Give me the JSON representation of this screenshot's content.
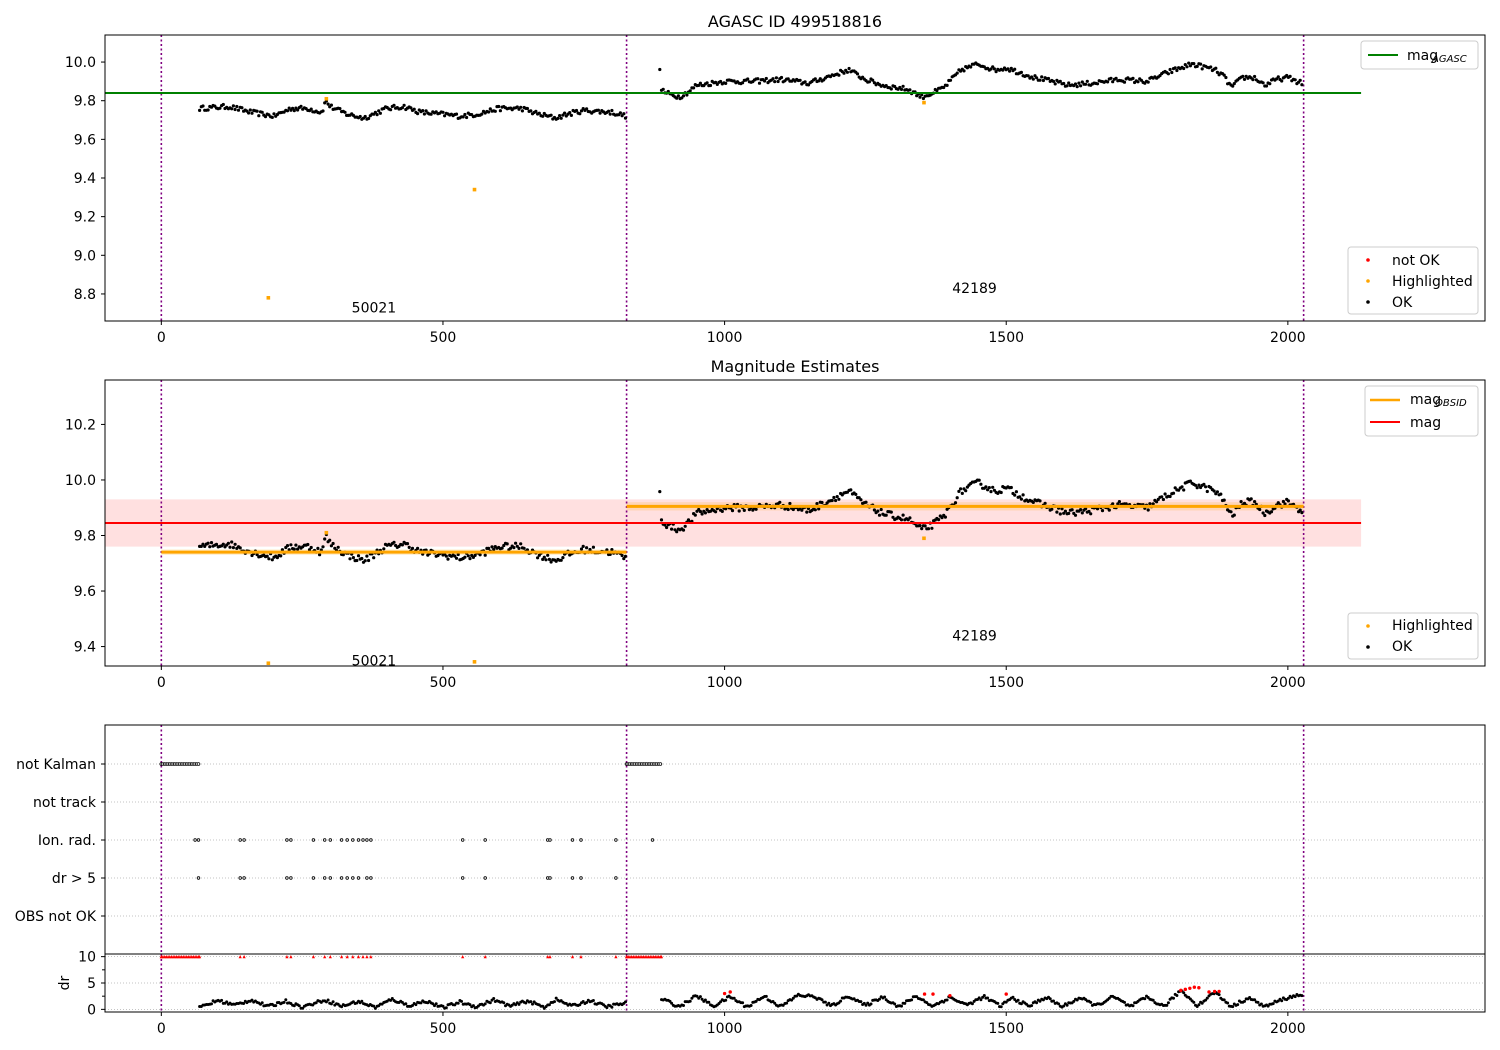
{
  "chart_data": [
    {
      "type": "scatter",
      "title": "AGASC ID 499518816",
      "xlim": [
        -100,
        2350
      ],
      "ylim": [
        8.66,
        10.14
      ],
      "xticks": [
        0,
        500,
        1000,
        1500,
        2000
      ],
      "yticks": [
        8.8,
        9.0,
        9.2,
        9.4,
        9.6,
        9.8,
        10.0
      ],
      "ytick_labels": [
        "8.8",
        "9.0",
        "9.2",
        "9.4",
        "9.6",
        "9.8",
        "10.0"
      ],
      "obs_boundaries": [
        0,
        826,
        2028
      ],
      "obs_labels": [
        {
          "text": "50021",
          "x": 413,
          "y": 8.73
        },
        {
          "text": "42189",
          "x": 1426,
          "y": 8.83
        }
      ],
      "mag_agasc": {
        "value": 9.84,
        "x": [
          -100,
          2130
        ],
        "color": "#008000"
      },
      "ok_segments": [
        {
          "x0": 68,
          "x1": 826,
          "step": 3,
          "base": 9.74,
          "points": [
            [
              68,
              9.76
            ],
            [
              120,
              9.77
            ],
            [
              160,
              9.74
            ],
            [
              180,
              9.73
            ],
            [
              200,
              9.72
            ],
            [
              230,
              9.76
            ],
            [
              260,
              9.76
            ],
            [
              285,
              9.74
            ],
            [
              292,
              9.8
            ],
            [
              300,
              9.77
            ],
            [
              330,
              9.73
            ],
            [
              360,
              9.71
            ],
            [
              400,
              9.76
            ],
            [
              430,
              9.77
            ],
            [
              460,
              9.74
            ],
            [
              500,
              9.73
            ],
            [
              530,
              9.72
            ],
            [
              560,
              9.73
            ],
            [
              600,
              9.76
            ],
            [
              640,
              9.76
            ],
            [
              670,
              9.73
            ],
            [
              700,
              9.71
            ],
            [
              720,
              9.73
            ],
            [
              750,
              9.75
            ],
            [
              800,
              9.74
            ],
            [
              826,
              9.72
            ]
          ]
        },
        {
          "x0": 885,
          "x1": 2025,
          "step": 3,
          "base": 9.88,
          "points": [
            [
              885,
              9.95
            ],
            [
              888,
              9.86
            ],
            [
              895,
              9.84
            ],
            [
              920,
              9.82
            ],
            [
              938,
              9.85
            ],
            [
              950,
              9.88
            ],
            [
              1000,
              9.9
            ],
            [
              1050,
              9.9
            ],
            [
              1100,
              9.91
            ],
            [
              1150,
              9.89
            ],
            [
              1180,
              9.92
            ],
            [
              1200,
              9.94
            ],
            [
              1220,
              9.96
            ],
            [
              1250,
              9.91
            ],
            [
              1280,
              9.88
            ],
            [
              1300,
              9.87
            ],
            [
              1325,
              9.86
            ],
            [
              1350,
              9.82
            ],
            [
              1370,
              9.84
            ],
            [
              1390,
              9.87
            ],
            [
              1420,
              9.96
            ],
            [
              1450,
              9.99
            ],
            [
              1480,
              9.96
            ],
            [
              1500,
              9.97
            ],
            [
              1520,
              9.95
            ],
            [
              1550,
              9.92
            ],
            [
              1580,
              9.9
            ],
            [
              1610,
              9.88
            ],
            [
              1650,
              9.89
            ],
            [
              1700,
              9.91
            ],
            [
              1750,
              9.9
            ],
            [
              1790,
              9.95
            ],
            [
              1830,
              9.99
            ],
            [
              1870,
              9.96
            ],
            [
              1885,
              9.93
            ],
            [
              1900,
              9.87
            ],
            [
              1920,
              9.92
            ],
            [
              1940,
              9.92
            ],
            [
              1960,
              9.88
            ],
            [
              1980,
              9.91
            ],
            [
              2000,
              9.92
            ],
            [
              2025,
              9.89
            ]
          ]
        }
      ],
      "highlighted": [
        [
          190,
          8.78
        ],
        [
          293,
          9.81
        ],
        [
          556,
          9.34
        ],
        [
          1354,
          9.79
        ]
      ],
      "legends": [
        {
          "position": "upper right",
          "items": [
            {
              "label": "mag",
              "sub": "AGASC",
              "color": "#008000",
              "kind": "line"
            }
          ]
        },
        {
          "position": "lower right",
          "items": [
            {
              "label": "not OK",
              "color": "#ff0000",
              "kind": "dot"
            },
            {
              "label": "Highlighted",
              "color": "#ffa500",
              "kind": "dot"
            },
            {
              "label": "OK",
              "color": "#000000",
              "kind": "dot"
            }
          ]
        }
      ]
    },
    {
      "type": "scatter",
      "title": "Magnitude Estimates",
      "xlim": [
        -100,
        2350
      ],
      "ylim": [
        9.33,
        10.36
      ],
      "xticks": [
        0,
        500,
        1000,
        1500,
        2000
      ],
      "yticks": [
        9.4,
        9.6,
        9.8,
        10.0,
        10.2
      ],
      "ytick_labels": [
        "9.4",
        "9.6",
        "9.8",
        "10.0",
        "10.2"
      ],
      "obs_labels": [
        {
          "text": "50021",
          "x": 413,
          "y": 9.35
        },
        {
          "text": "42189",
          "x": 1426,
          "y": 9.44
        }
      ],
      "mag": {
        "value": 9.845,
        "band": [
          9.76,
          9.93
        ],
        "x": [
          -100,
          2130
        ],
        "color": "#ff0000"
      },
      "mag_obsid": [
        {
          "x": [
            0,
            826
          ],
          "value": 9.74,
          "band": [
            9.73,
            9.75
          ]
        },
        {
          "x": [
            826,
            2028
          ],
          "value": 9.905,
          "band": [
            9.89,
            9.92
          ]
        }
      ],
      "highlighted": [
        [
          190,
          9.34
        ],
        [
          293,
          9.81
        ],
        [
          556,
          9.345
        ],
        [
          1354,
          9.79
        ]
      ],
      "legends": [
        {
          "position": "upper right",
          "items": [
            {
              "label": "mag",
              "sub": "OBSID",
              "color": "#ffa500",
              "kind": "line"
            },
            {
              "label": "mag",
              "color": "#ff0000",
              "kind": "line"
            }
          ]
        },
        {
          "position": "lower right",
          "items": [
            {
              "label": "Highlighted",
              "color": "#ffa500",
              "kind": "dot"
            },
            {
              "label": "OK",
              "color": "#000000",
              "kind": "dot"
            }
          ]
        }
      ]
    },
    {
      "type": "scatter",
      "xlim": [
        -100,
        2350
      ],
      "categories": [
        "not Kalman",
        "not track",
        "Ion. rad.",
        "dr > 5",
        "OBS not OK"
      ],
      "flags": {
        "not Kalman": [
          [
            0,
            68
          ],
          [
            826,
            888
          ]
        ],
        "Ion. rad.": [
          60,
          66,
          140,
          147,
          223,
          230,
          270,
          290,
          300,
          320,
          330,
          340,
          350,
          358,
          365,
          372,
          535,
          575,
          686,
          690,
          730,
          745,
          807,
          872
        ],
        "dr > 5": [
          66,
          140,
          147,
          223,
          230,
          270,
          290,
          300,
          320,
          330,
          340,
          350,
          365,
          372,
          535,
          575,
          686,
          690,
          730,
          745,
          807
        ]
      }
    },
    {
      "type": "scatter",
      "ylabel": "dr",
      "xlim": [
        -100,
        2350
      ],
      "ylim": [
        -0.5,
        10.5
      ],
      "xticks": [
        0,
        500,
        1000,
        1500,
        2000
      ],
      "yticks": [
        0,
        5,
        10
      ],
      "dr_segments": [
        {
          "x0": 68,
          "x1": 826,
          "step": 3,
          "points": [
            [
              68,
              0.3
            ],
            [
              100,
              1.7
            ],
            [
              130,
              0.8
            ],
            [
              160,
              1.8
            ],
            [
              190,
              0.5
            ],
            [
              220,
              1.6
            ],
            [
              250,
              0.4
            ],
            [
              290,
              1.8
            ],
            [
              320,
              0.6
            ],
            [
              350,
              1.5
            ],
            [
              380,
              0.4
            ],
            [
              410,
              1.9
            ],
            [
              440,
              0.7
            ],
            [
              470,
              1.6
            ],
            [
              500,
              0.3
            ],
            [
              530,
              1.4
            ],
            [
              560,
              0.5
            ],
            [
              590,
              1.8
            ],
            [
              620,
              0.6
            ],
            [
              650,
              1.6
            ],
            [
              680,
              0.4
            ],
            [
              700,
              1.9
            ],
            [
              730,
              0.6
            ],
            [
              760,
              1.7
            ],
            [
              790,
              0.5
            ],
            [
              826,
              1.2
            ]
          ]
        },
        {
          "x0": 888,
          "x1": 2025,
          "step": 3,
          "points": [
            [
              888,
              2.0
            ],
            [
              920,
              0.5
            ],
            [
              950,
              2.6
            ],
            [
              980,
              0.6
            ],
            [
              1010,
              2.4
            ],
            [
              1040,
              0.5
            ],
            [
              1070,
              2.5
            ],
            [
              1100,
              0.5
            ],
            [
              1130,
              2.7
            ],
            [
              1160,
              2.4
            ],
            [
              1190,
              0.6
            ],
            [
              1220,
              2.6
            ],
            [
              1250,
              0.7
            ],
            [
              1280,
              2.4
            ],
            [
              1310,
              0.5
            ],
            [
              1340,
              2.5
            ],
            [
              1370,
              0.6
            ],
            [
              1400,
              2.3
            ],
            [
              1430,
              0.8
            ],
            [
              1460,
              2.4
            ],
            [
              1490,
              0.6
            ],
            [
              1510,
              2.2
            ],
            [
              1540,
              0.6
            ],
            [
              1570,
              2.3
            ],
            [
              1600,
              0.5
            ],
            [
              1630,
              2.2
            ],
            [
              1660,
              0.7
            ],
            [
              1690,
              2.4
            ],
            [
              1720,
              0.5
            ],
            [
              1750,
              2.3
            ],
            [
              1780,
              0.5
            ],
            [
              1810,
              3.6
            ],
            [
              1840,
              0.7
            ],
            [
              1870,
              3.3
            ],
            [
              1900,
              0.5
            ],
            [
              1930,
              2.2
            ],
            [
              1960,
              0.5
            ],
            [
              1990,
              1.9
            ],
            [
              2025,
              2.9
            ]
          ]
        }
      ],
      "dr_red": [
        [
          1000,
          3.0
        ],
        [
          1010,
          3.3
        ],
        [
          1355,
          2.9
        ],
        [
          1370,
          2.9
        ],
        [
          1400,
          2.6
        ],
        [
          1500,
          2.9
        ],
        [
          1810,
          3.6
        ],
        [
          1818,
          3.8
        ],
        [
          1826,
          4.0
        ],
        [
          1834,
          4.2
        ],
        [
          1842,
          4.1
        ],
        [
          1860,
          3.3
        ],
        [
          1870,
          3.4
        ],
        [
          1878,
          3.4
        ]
      ],
      "ion_markers_at_10": [
        0,
        68,
        140,
        147,
        223,
        230,
        270,
        290,
        300,
        320,
        330,
        340,
        350,
        358,
        365,
        372,
        535,
        575,
        686,
        690,
        730,
        745,
        807,
        826,
        888
      ]
    }
  ]
}
